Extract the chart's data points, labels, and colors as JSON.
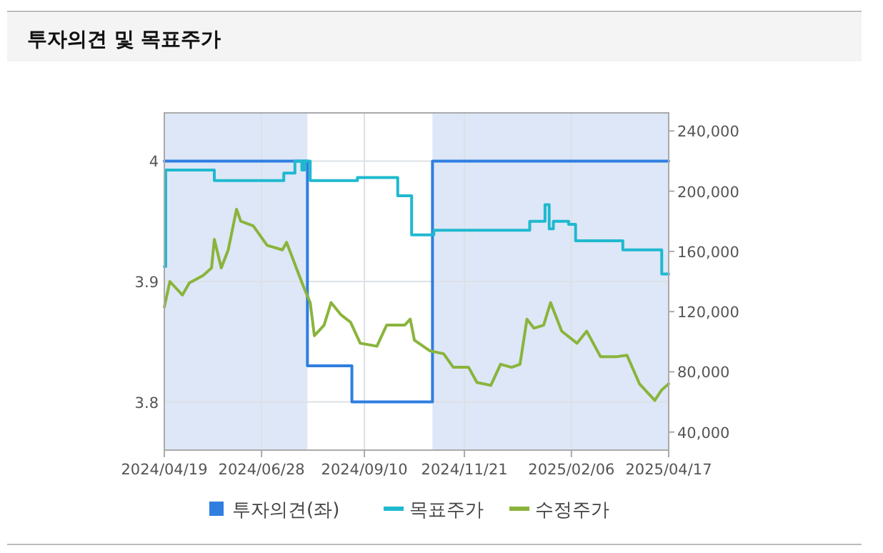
{
  "chart_data": {
    "type": "line",
    "title": "투자의견 및 목표주가",
    "xlim": [
      "2024-04-19",
      "2025-04-17"
    ],
    "xticks": [
      {
        "value": "2024-04-19",
        "label": "2024/04/19"
      },
      {
        "value": "2024-06-28",
        "label": "2024/06/28"
      },
      {
        "value": "2024-09-10",
        "label": "2024/09/10"
      },
      {
        "value": "2024-11-21",
        "label": "2024/11/21"
      },
      {
        "value": "2025-02-06",
        "label": "2025/02/06"
      },
      {
        "value": "2025-04-17",
        "label": "2025/04/17"
      }
    ],
    "ylim": [
      3.76,
      4.04
    ],
    "yticks": [
      3.8,
      3.9,
      4
    ],
    "y2lim": [
      28000,
      252000
    ],
    "y2ticks": [
      {
        "value": 40000,
        "label": "40,000"
      },
      {
        "value": 80000,
        "label": "80,000"
      },
      {
        "value": 120000,
        "label": "120,000"
      },
      {
        "value": 160000,
        "label": "160,000"
      },
      {
        "value": 200000,
        "label": "200,000"
      },
      {
        "value": 240000,
        "label": "240,000"
      }
    ],
    "grid": true,
    "legend": "bottom",
    "bands": [
      {
        "axis": "x",
        "from": "2024-04-19",
        "to": "2024-07-31",
        "color": "#dde7f7"
      },
      {
        "axis": "x",
        "from": "2024-10-29",
        "to": "2025-04-17",
        "color": "#dde7f7"
      }
    ],
    "series": [
      {
        "name": "투자의견(좌)",
        "type": "step",
        "color": "#2f7ee0",
        "x": [
          "2024-04-19",
          "2024-07-31",
          "2024-09-01",
          "2024-10-29",
          "2025-04-17"
        ],
        "values": [
          4,
          3.83,
          3.8,
          4,
          4
        ]
      },
      {
        "name": "목표주가",
        "type": "step",
        "axis": "y2",
        "color": "#1fb9cf",
        "x": [
          "2024-04-19",
          "2024-04-20",
          "2024-05-25",
          "2024-07-14",
          "2024-07-22",
          "2024-07-27",
          "2024-07-29",
          "2024-08-02",
          "2024-09-05",
          "2024-10-04",
          "2024-10-14",
          "2024-10-30",
          "2025-01-07",
          "2025-01-18",
          "2025-01-21",
          "2025-01-24",
          "2025-02-04",
          "2025-02-09",
          "2025-03-15",
          "2025-04-12",
          "2025-04-17"
        ],
        "values": [
          150000,
          214000,
          207000,
          212000,
          220000,
          214000,
          220000,
          207000,
          209000,
          197000,
          171000,
          174000,
          180000,
          191000,
          175000,
          180000,
          178000,
          167000,
          161000,
          145000,
          145000
        ]
      },
      {
        "name": "수정주가",
        "axis": "y2",
        "color": "#8ab43c",
        "x": [
          "2024-04-19",
          "2024-04-23",
          "2024-05-02",
          "2024-05-07",
          "2024-05-17",
          "2024-05-23",
          "2024-05-25",
          "2024-05-30",
          "2024-06-04",
          "2024-06-10",
          "2024-06-13",
          "2024-06-22",
          "2024-07-02",
          "2024-07-13",
          "2024-07-16",
          "2024-07-23",
          "2024-07-28",
          "2024-08-02",
          "2024-08-05",
          "2024-08-12",
          "2024-08-17",
          "2024-08-24",
          "2024-08-31",
          "2024-09-07",
          "2024-09-19",
          "2024-09-26",
          "2024-10-09",
          "2024-10-13",
          "2024-10-16",
          "2024-10-27",
          "2024-11-06",
          "2024-11-13",
          "2024-11-24",
          "2024-11-30",
          "2024-12-10",
          "2024-12-17",
          "2024-12-25",
          "2024-12-31",
          "2025-01-05",
          "2025-01-10",
          "2025-01-17",
          "2025-01-22",
          "2025-01-30",
          "2025-02-10",
          "2025-02-17",
          "2025-02-27",
          "2025-03-10",
          "2025-03-18",
          "2025-03-27",
          "2025-04-07",
          "2025-04-12",
          "2025-04-17"
        ],
        "values": [
          123000,
          140000,
          131000,
          139000,
          144000,
          149000,
          168000,
          149000,
          161000,
          188000,
          180000,
          177000,
          164000,
          161000,
          166000,
          149000,
          137000,
          126000,
          104000,
          111000,
          126000,
          118000,
          113000,
          99000,
          97000,
          111000,
          111000,
          115000,
          101000,
          94000,
          92000,
          83000,
          83000,
          73000,
          71000,
          85000,
          83000,
          85000,
          115000,
          109000,
          111000,
          126000,
          107000,
          99000,
          107000,
          90000,
          90000,
          91000,
          72000,
          61000,
          68000,
          72000
        ]
      }
    ]
  }
}
